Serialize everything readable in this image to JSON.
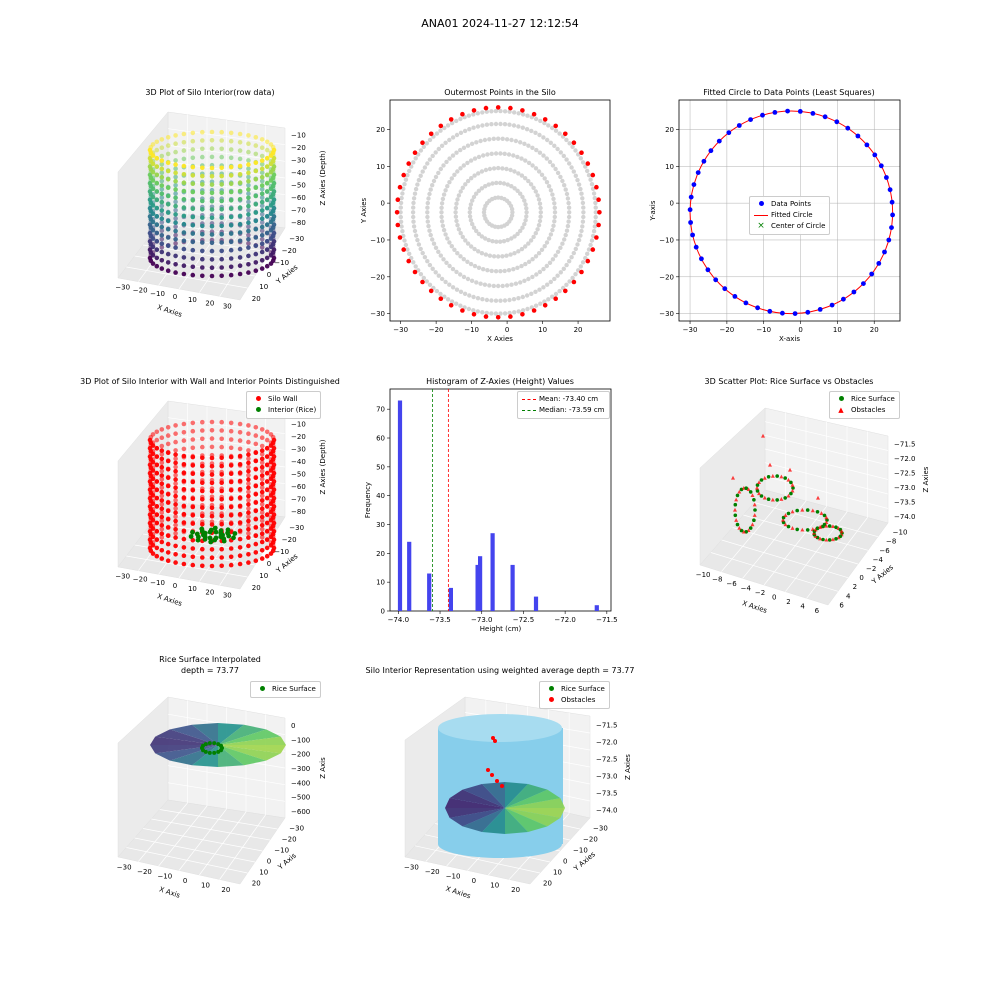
{
  "suptitle": "ANA01 2024-11-27 12:12:54",
  "colors": {
    "wall": "#ff0000",
    "rice": "#008000",
    "data_points": "#0000ff",
    "grey": "#d3d3d3",
    "cyan": "#87ceeb",
    "hist": "#4444ee",
    "mean": "#ff0000",
    "median": "#008000"
  },
  "chart_data": [
    {
      "type": "scatter",
      "title": "3D Plot of Silo Interior(row data)",
      "xlabel": "X Axies",
      "ylabel": "Y Axies",
      "zlabel": "Z Axies (Depth)",
      "xticks": [
        "−30",
        "−20",
        "−10",
        "0",
        "10",
        "20",
        "30"
      ],
      "yticks": [
        "20",
        "10",
        "0",
        "−10",
        "−20",
        "−30"
      ],
      "zticks": [
        "−10",
        "−20",
        "−30",
        "−40",
        "−50",
        "−60",
        "−70",
        "−80"
      ],
      "colormap": "viridis"
    },
    {
      "type": "scatter",
      "title": "Outermost Points in the Silo",
      "xlabel": "X Axies",
      "ylabel": "Y Axies",
      "xticks": [
        -30,
        -20,
        -10,
        0,
        10,
        20
      ],
      "yticks": [
        20,
        10,
        0,
        -10,
        -20,
        -30
      ],
      "xlim": [
        -33,
        29
      ],
      "ylim": [
        -32,
        28
      ],
      "center": [
        -2.5,
        -2.5
      ],
      "rings": [
        4,
        8,
        12,
        16,
        20,
        24,
        27.5
      ]
    },
    {
      "type": "scatter",
      "title": "Fitted Circle to Data Points (Least Squares)",
      "xlabel": "X-axis",
      "ylabel": "Y-axis",
      "xticks": [
        -30,
        -20,
        -10,
        0,
        10,
        20
      ],
      "yticks": [
        20,
        10,
        0,
        -10,
        -20,
        -30
      ],
      "xlim": [
        -33,
        27
      ],
      "ylim": [
        -32,
        28
      ],
      "fitted_center": [
        -2.5,
        -2.5
      ],
      "fitted_radius": 27.5,
      "legend": [
        "Data Points",
        "Fitted Circle",
        "Center of Circle"
      ]
    },
    {
      "type": "scatter",
      "title": "3D Plot of Silo Interior with Wall and Interior Points Distinguished",
      "xlabel": "X Axies",
      "ylabel": "Y Axies",
      "zlabel": "Z Axies (Depth)",
      "xticks": [
        "−30",
        "−20",
        "−10",
        "0",
        "10",
        "20",
        "30"
      ],
      "yticks": [
        "20",
        "10",
        "0",
        "−10",
        "−20",
        "−30"
      ],
      "zticks": [
        "−10",
        "−20",
        "−30",
        "−40",
        "−50",
        "−60",
        "−70",
        "−80"
      ],
      "legend": [
        "Silo Wall",
        "Interior (Rice)"
      ]
    },
    {
      "type": "bar",
      "title": "Histogram of Z-Axies (Height) Values",
      "xlabel": "Height (cm)",
      "ylabel": "Frequency",
      "xlim": [
        -74.1,
        -71.45
      ],
      "ylim": [
        0,
        77
      ],
      "xticks": [
        -74.0,
        -73.5,
        -73.0,
        -72.5,
        -72.0,
        -71.5
      ],
      "xtick_labels": [
        "−74.0",
        "−73.5",
        "−73.0",
        "−72.5",
        "−72.0",
        "−71.5"
      ],
      "yticks": [
        0,
        10,
        20,
        30,
        40,
        50,
        60,
        70
      ],
      "bins": [
        {
          "x": -73.98,
          "count": 73
        },
        {
          "x": -73.87,
          "count": 24
        },
        {
          "x": -73.63,
          "count": 13
        },
        {
          "x": -73.37,
          "count": 8
        },
        {
          "x": -73.05,
          "count": 16
        },
        {
          "x": -73.02,
          "count": 19
        },
        {
          "x": -72.87,
          "count": 27
        },
        {
          "x": -72.63,
          "count": 16
        },
        {
          "x": -72.35,
          "count": 5
        },
        {
          "x": -71.62,
          "count": 2
        }
      ],
      "mean": -73.4,
      "median": -73.59,
      "legend": [
        "Mean: -73.40 cm",
        "Median: -73.59 cm"
      ]
    },
    {
      "type": "scatter",
      "title": "3D Scatter Plot: Rice Surface vs Obstacles",
      "xlabel": "X Axies",
      "ylabel": "Y Axies",
      "zlabel": "Z Axies",
      "xticks": [
        "−10",
        "−8",
        "−6",
        "−4",
        "−2",
        "0",
        "2",
        "4",
        "6"
      ],
      "yticks": [
        "6",
        "4",
        "2",
        "0",
        "−2",
        "−4",
        "−6",
        "−8",
        "−10"
      ],
      "zticks": [
        "−71.5",
        "−72.0",
        "−72.5",
        "−73.0",
        "−73.5",
        "−74.0"
      ],
      "legend": [
        "Rice Surface",
        "Obstacles"
      ]
    },
    {
      "type": "area",
      "title": "Rice Surface Interpolated",
      "subtitle": "depth = 73.77",
      "xlabel": "X Axis",
      "ylabel": "Y Axis",
      "zlabel": "Z Axis",
      "xticks": [
        "−30",
        "−20",
        "−10",
        "0",
        "10",
        "20"
      ],
      "yticks": [
        "20",
        "10",
        "0",
        "−10",
        "−20",
        "−30"
      ],
      "zticks": [
        "0",
        "−100",
        "−200",
        "−300",
        "−400",
        "−500",
        "−600"
      ],
      "legend": [
        "Rice Surface"
      ]
    },
    {
      "type": "area",
      "title": "Silo Interior Representation using weighted average depth = 73.77",
      "xlabel": "X Axies",
      "ylabel": "Y Axies",
      "zlabel": "Z Axies",
      "xticks": [
        "−30",
        "−20",
        "−10",
        "0",
        "10",
        "20"
      ],
      "yticks": [
        "20",
        "10",
        "0",
        "−10",
        "−20",
        "−30"
      ],
      "zticks": [
        "−71.5",
        "−72.0",
        "−72.5",
        "−73.0",
        "−73.5",
        "−74.0"
      ],
      "legend": [
        "Rice Surface",
        "Obstacles"
      ]
    }
  ]
}
